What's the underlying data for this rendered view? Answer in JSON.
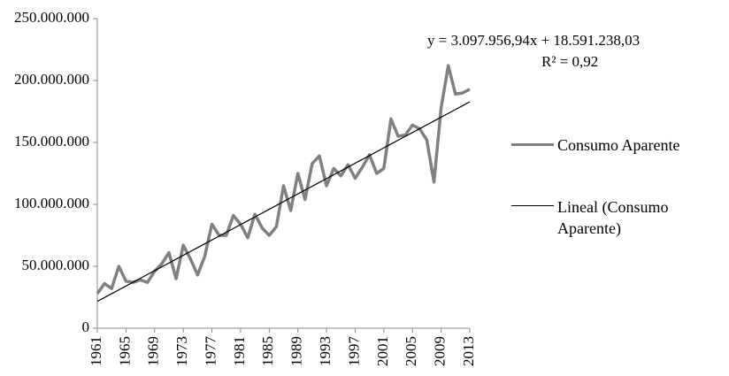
{
  "chart_data": {
    "type": "line",
    "x": [
      1961,
      1962,
      1963,
      1964,
      1965,
      1966,
      1967,
      1968,
      1969,
      1970,
      1971,
      1972,
      1973,
      1974,
      1975,
      1976,
      1977,
      1978,
      1979,
      1980,
      1981,
      1982,
      1983,
      1984,
      1985,
      1986,
      1987,
      1988,
      1989,
      1990,
      1991,
      1992,
      1993,
      1994,
      1995,
      1996,
      1997,
      1998,
      1999,
      2000,
      2001,
      2002,
      2003,
      2004,
      2005,
      2006,
      2007,
      2008,
      2009,
      2010,
      2011,
      2012,
      2013
    ],
    "series": [
      {
        "name": "Consumo Aparente",
        "color": "#808080",
        "width": 3.5,
        "values": [
          28000000,
          36000000,
          32000000,
          50000000,
          38000000,
          37000000,
          39000000,
          37000000,
          46000000,
          52000000,
          61000000,
          40000000,
          67000000,
          56000000,
          43000000,
          58000000,
          84000000,
          75000000,
          75000000,
          91000000,
          84000000,
          73000000,
          92000000,
          81000000,
          75000000,
          82000000,
          115000000,
          95000000,
          125000000,
          104000000,
          133000000,
          139000000,
          115000000,
          129000000,
          123000000,
          132000000,
          121000000,
          130000000,
          140000000,
          125000000,
          129000000,
          169000000,
          155000000,
          156000000,
          164000000,
          161000000,
          152000000,
          118000000,
          178000000,
          212000000,
          189000000,
          190000000,
          193000000
        ]
      },
      {
        "name": "Lineal (Consumo Aparente)",
        "color": "#000000",
        "width": 1.2,
        "values": [
          21689000,
          24787000,
          27885000,
          30983000,
          34081000,
          37179000,
          40277000,
          43375000,
          46473000,
          49571000,
          52669000,
          55767000,
          58865000,
          61963000,
          65061000,
          68159000,
          71257000,
          74355000,
          77453000,
          80551000,
          83649000,
          86747000,
          89845000,
          92943000,
          96041000,
          99139000,
          102237000,
          105335000,
          108433000,
          111530000,
          114628000,
          117726000,
          120824000,
          123922000,
          127020000,
          130118000,
          133216000,
          136314000,
          139412000,
          142510000,
          145608000,
          148706000,
          151804000,
          154902000,
          158000000,
          161098000,
          164196000,
          167294000,
          170392000,
          173490000,
          176588000,
          179686000,
          182784000
        ]
      }
    ],
    "xlim": [
      1961,
      2013
    ],
    "xticks": [
      1961,
      1965,
      1969,
      1973,
      1977,
      1981,
      1985,
      1989,
      1993,
      1997,
      2001,
      2005,
      2009,
      2013
    ],
    "ylim": [
      0,
      250000000
    ],
    "yticks": [
      0,
      {
        "value": 50000000,
        "label": "50.000.000"
      },
      {
        "value": 100000000,
        "label": "100.000.000"
      },
      {
        "value": 150000000,
        "label": "150.000.000"
      },
      {
        "value": 200000000,
        "label": "200.000.000"
      },
      {
        "value": 250000000,
        "label": "250.000.000"
      }
    ],
    "annotations": [
      "y = 3.097.956,94x + 18.591.238,03",
      "R² = 0,92"
    ],
    "grid": false,
    "legend": "right"
  }
}
